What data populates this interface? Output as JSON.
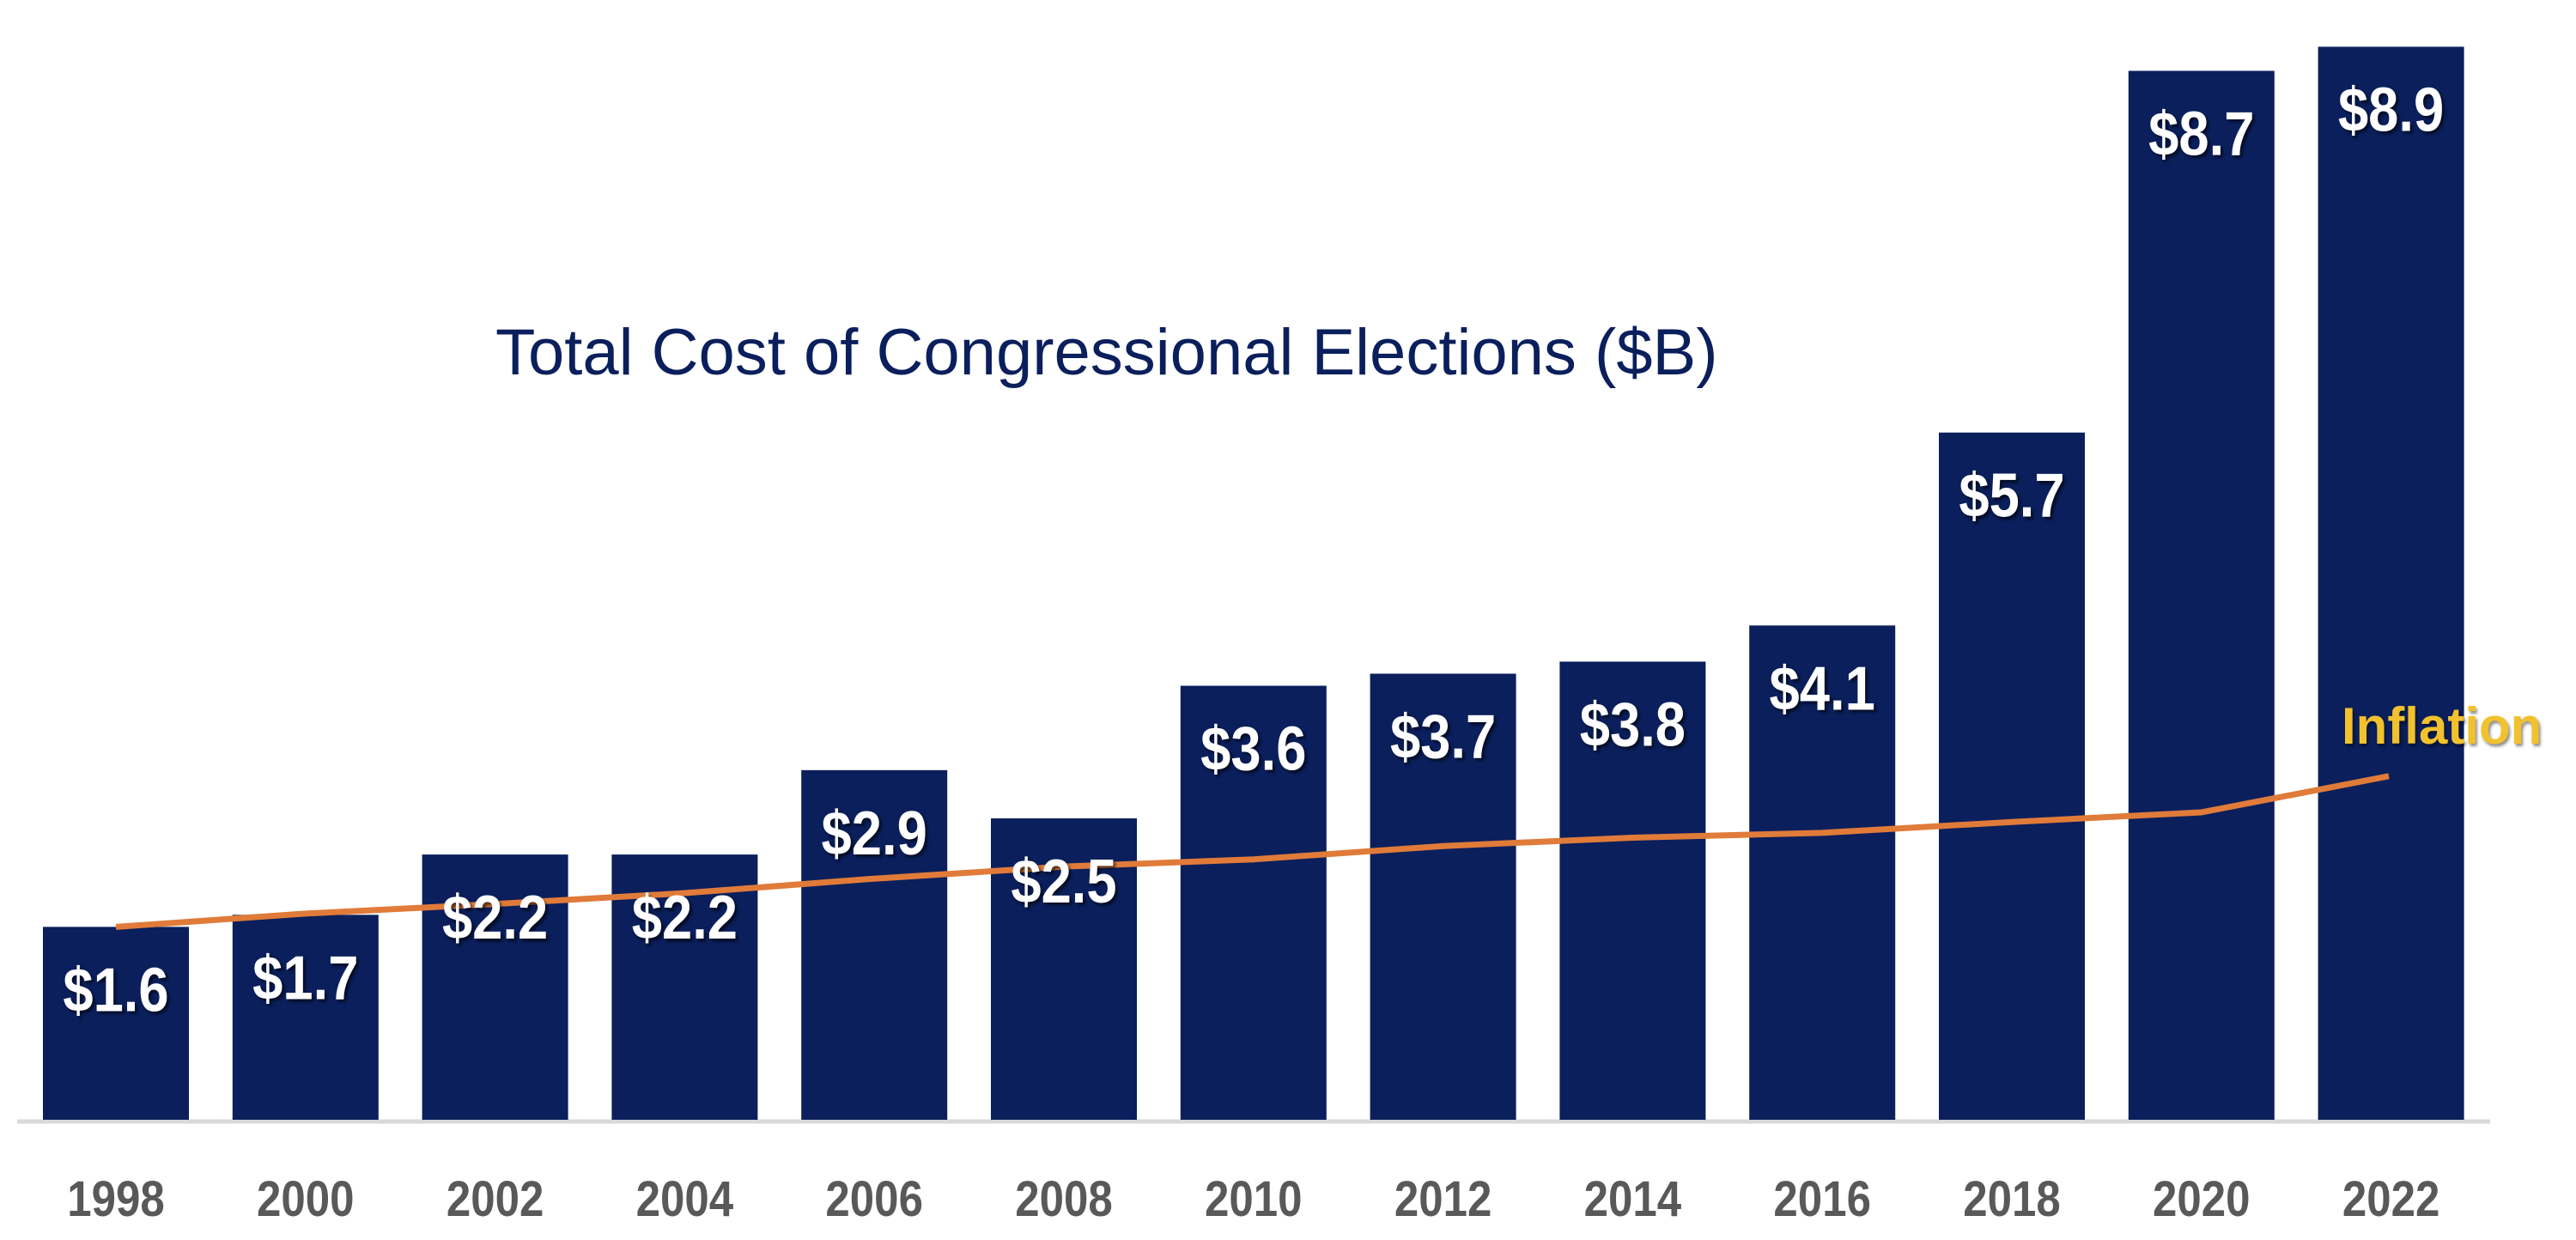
{
  "chart_data": {
    "type": "bar",
    "title": "Total Cost of Congressional Elections ($B)",
    "xlabel": "",
    "ylabel": "",
    "ylim": [
      0,
      8.9
    ],
    "grid": false,
    "categories": [
      "1998",
      "2000",
      "2002",
      "2004",
      "2006",
      "2008",
      "2010",
      "2012",
      "2014",
      "2016",
      "2018",
      "2020",
      "2022"
    ],
    "series": [
      {
        "type": "bar",
        "values": [
          1.6,
          1.7,
          2.2,
          2.2,
          2.9,
          2.5,
          3.6,
          3.7,
          3.8,
          4.1,
          5.7,
          8.7,
          8.9
        ],
        "data_labels": [
          "$1.6",
          "$1.7",
          "$2.2",
          "$2.2",
          "$2.9",
          "$2.5",
          "$3.6",
          "$3.7",
          "$3.8",
          "$4.1",
          "$5.7",
          "$8.7",
          "$8.9"
        ],
        "color": "#0a1f5c"
      },
      {
        "type": "line",
        "name": "Inflation",
        "values": [
          1.6,
          1.71,
          1.79,
          1.88,
          2.0,
          2.1,
          2.16,
          2.27,
          2.34,
          2.38,
          2.47,
          2.55,
          2.85
        ],
        "color": "#e07b39",
        "label_color": "#f2c12e"
      }
    ],
    "axis_color": "#d9d9d9",
    "tick_label_color": "#595959"
  }
}
